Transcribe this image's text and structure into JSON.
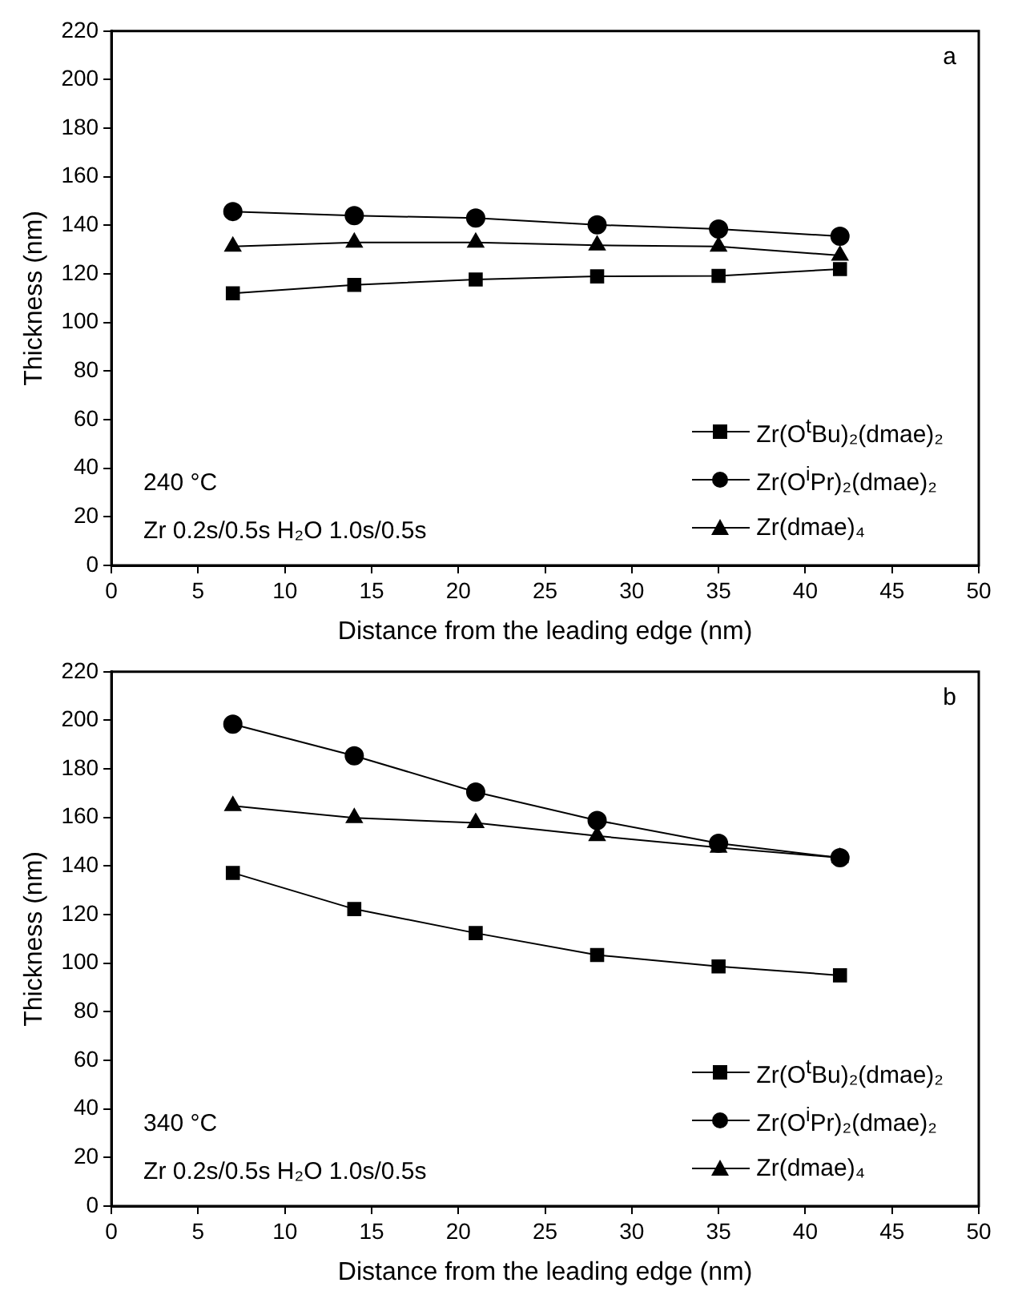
{
  "chart_data": [
    {
      "type": "line",
      "xlabel": "Distance from the leading edge (nm)",
      "ylabel": "Thickness (nm)",
      "xlim": [
        0,
        50
      ],
      "xticks": [
        0,
        5,
        10,
        15,
        20,
        25,
        30,
        35,
        40,
        45,
        50
      ],
      "ylim": [
        0,
        220
      ],
      "yticks": [
        0,
        20,
        40,
        60,
        80,
        100,
        120,
        140,
        160,
        180,
        200,
        220
      ],
      "grid": false,
      "legend": "bottom right",
      "line_style": "solid",
      "x": [
        7,
        14,
        21,
        28,
        35,
        42
      ],
      "annotations": [
        "a",
        "240 °C",
        "Zr 0.2s/0.5s H₂O 1.0s/0.5s"
      ],
      "series": [
        {
          "name": "Zr(O$^{t}$Bu)₂(dmae)₂",
          "color": "#000000",
          "marker": "square",
          "values": [
            112,
            115.5,
            117.7,
            119,
            119.2,
            122
          ]
        },
        {
          "name": "Zr(O$^{i}$Pr)₂(dmae)₂",
          "color": "#000000",
          "marker": "circle",
          "values": [
            145.7,
            144,
            143,
            140.2,
            138.5,
            135.5
          ]
        },
        {
          "name": "Zr(dmae)₄",
          "color": "#000000",
          "marker": "triangle",
          "values": [
            131.3,
            133,
            133,
            131.8,
            131.3,
            127.6
          ]
        }
      ]
    },
    {
      "type": "line",
      "xlabel": "Distance from the leading edge (nm)",
      "ylabel": "Thickness (nm)",
      "xlim": [
        0,
        50
      ],
      "xticks": [
        0,
        5,
        10,
        15,
        20,
        25,
        30,
        35,
        40,
        45,
        50
      ],
      "ylim": [
        0,
        220
      ],
      "yticks": [
        0,
        20,
        40,
        60,
        80,
        100,
        120,
        140,
        160,
        180,
        200,
        220
      ],
      "grid": false,
      "legend": "bottom right",
      "line_style": "solid",
      "x": [
        7,
        14,
        21,
        28,
        35,
        42
      ],
      "annotations": [
        "b",
        "340 °C",
        "Zr 0.2s/0.5s H₂O 1.0s/0.5s"
      ],
      "series": [
        {
          "name": "Zr(O$^{t}$Bu)₂(dmae)₂",
          "color": "#000000",
          "marker": "square",
          "values": [
            137.2,
            122.3,
            112.4,
            103.4,
            98.7,
            95
          ]
        },
        {
          "name": "Zr(O$^{i}$Pr)₂(dmae)₂",
          "color": "#000000",
          "marker": "circle",
          "values": [
            198.4,
            185.4,
            170.5,
            158.8,
            149.4,
            143.4
          ]
        },
        {
          "name": "Zr(dmae)₄",
          "color": "#000000",
          "marker": "triangle",
          "values": [
            164.8,
            159.8,
            157.8,
            152.4,
            147.6,
            143.4
          ]
        }
      ]
    }
  ]
}
